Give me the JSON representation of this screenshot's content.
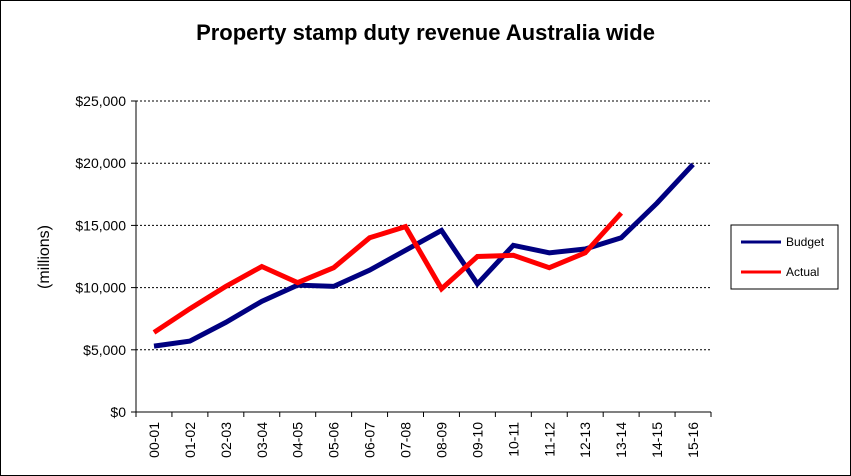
{
  "chart_data": {
    "type": "line",
    "title": "Property stamp duty revenue Australia wide",
    "ylabel": "(millions)",
    "xlabel": "",
    "ylim": [
      0,
      25000
    ],
    "yticks": [
      0,
      5000,
      10000,
      15000,
      20000,
      25000
    ],
    "ytick_labels": [
      "$0",
      "$5,000",
      "$10,000",
      "$15,000",
      "$20,000",
      "$25,000"
    ],
    "grid": "horizontal dashed",
    "legend_position": "right",
    "categories": [
      "00-01",
      "01-02",
      "02-03",
      "03-04",
      "04-05",
      "05-06",
      "06-07",
      "07-08",
      "08-09",
      "09-10",
      "10-11",
      "11-12",
      "12-13",
      "13-14",
      "14-15",
      "15-16"
    ],
    "series": [
      {
        "name": "Budget",
        "color": "#000080",
        "values": [
          5300,
          5700,
          7200,
          8900,
          10200,
          10100,
          11400,
          13000,
          14600,
          10300,
          13400,
          12800,
          13100,
          14000,
          16800,
          19900
        ]
      },
      {
        "name": "Actual",
        "color": "#ff0000",
        "values": [
          6400,
          8300,
          10100,
          11700,
          10400,
          11600,
          14000,
          14900,
          9900,
          12500,
          12600,
          11600,
          12800,
          16000,
          null,
          null
        ]
      }
    ]
  }
}
